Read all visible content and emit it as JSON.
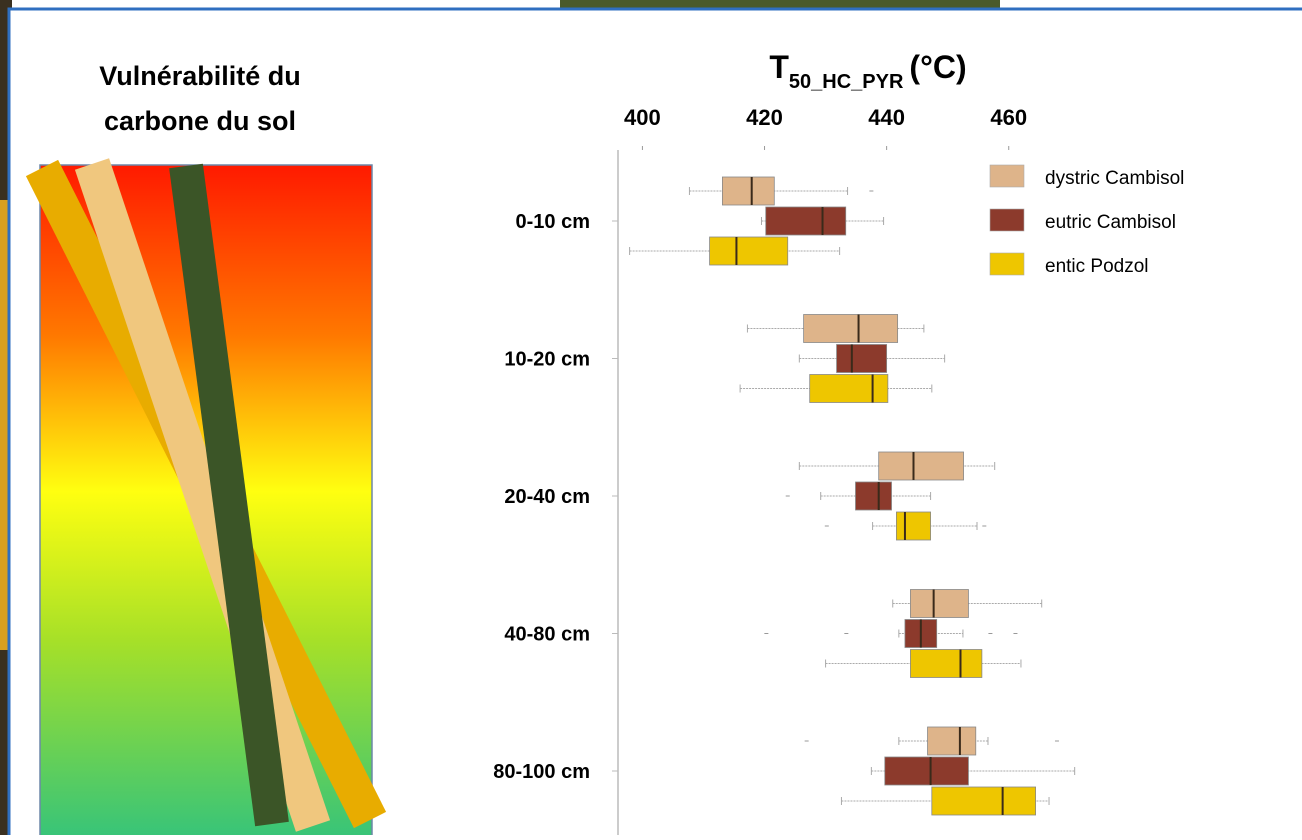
{
  "slide": {
    "heading_lines": [
      "Vulnérabilité du",
      "carbone du sol"
    ]
  },
  "chart_data": {
    "type": "boxplot",
    "x_label": {
      "main": "T",
      "sub": "50_HC_PYR",
      "unit": "(°C)"
    },
    "categories": [
      "0-10 cm",
      "10-20 cm",
      "20-40 cm",
      "40-80 cm",
      "80-100 cm"
    ],
    "xlim": [
      396,
      472
    ],
    "xticks": [
      400,
      420,
      440,
      460
    ],
    "legend": "upper right",
    "series": [
      {
        "name": "dystric Cambisol",
        "color": "#deb48a",
        "values": [
          {
            "whislo": 407.7,
            "q1": 413.1,
            "med": 417.9,
            "q3": 421.6,
            "whishi": 433.6,
            "fliers": [
              437.5
            ]
          },
          {
            "whislo": 417.2,
            "q1": 426.4,
            "med": 435.4,
            "q3": 441.8,
            "whishi": 446.1,
            "fliers": []
          },
          {
            "whislo": 425.7,
            "q1": 438.7,
            "med": 444.4,
            "q3": 452.6,
            "whishi": 457.7,
            "fliers": []
          },
          {
            "whislo": 441,
            "q1": 443.9,
            "med": 447.7,
            "q3": 453.4,
            "whishi": 465.4,
            "fliers": []
          },
          {
            "whislo": 442,
            "q1": 446.7,
            "med": 452,
            "q3": 454.6,
            "whishi": 456.6,
            "fliers": [
              426.9,
              467.9
            ]
          }
        ]
      },
      {
        "name": "eutric Cambisol",
        "color": "#8c3a2c",
        "values": [
          {
            "whislo": 419.5,
            "q1": 420.2,
            "med": 429.5,
            "q3": 433.3,
            "whishi": 439.5,
            "fliers": []
          },
          {
            "whislo": 425.7,
            "q1": 431.8,
            "med": 434.3,
            "q3": 440,
            "whishi": 449.5,
            "fliers": []
          },
          {
            "whislo": 429.2,
            "q1": 434.9,
            "med": 438.7,
            "q3": 440.8,
            "whishi": 447.2,
            "fliers": [
              423.8
            ]
          },
          {
            "whislo": 442,
            "q1": 443,
            "med": 445.6,
            "q3": 448.2,
            "whishi": 452.5,
            "fliers": [
              420.3,
              433.4,
              457,
              461.1
            ]
          },
          {
            "whislo": 437.5,
            "q1": 439.7,
            "med": 447.2,
            "q3": 453.4,
            "whishi": 470.8,
            "fliers": []
          }
        ]
      },
      {
        "name": "entic Podzol",
        "color": "#eec600",
        "values": [
          {
            "whislo": 397.9,
            "q1": 411,
            "med": 415.4,
            "q3": 423.8,
            "whishi": 432.3,
            "fliers": []
          },
          {
            "whislo": 416,
            "q1": 427.4,
            "med": 437.7,
            "q3": 440.2,
            "whishi": 447.4,
            "fliers": []
          },
          {
            "whislo": 437.7,
            "q1": 441.6,
            "med": 443,
            "q3": 447.2,
            "whishi": 454.8,
            "fliers": [
              430.2,
              456
            ]
          },
          {
            "whislo": 430,
            "q1": 443.9,
            "med": 452.1,
            "q3": 455.6,
            "whishi": 462,
            "fliers": []
          },
          {
            "whislo": 432.6,
            "q1": 447.4,
            "med": 459,
            "q3": 464.4,
            "whishi": 466.6,
            "fliers": []
          }
        ]
      }
    ]
  }
}
